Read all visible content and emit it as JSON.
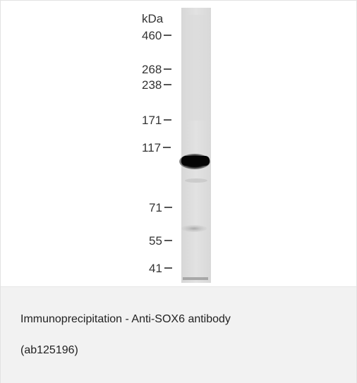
{
  "figure": {
    "unit": "kDa",
    "markers": [
      "460",
      "268",
      "238",
      "171",
      "117",
      "71",
      "55",
      "41"
    ]
  },
  "caption": {
    "line1": "Immunoprecipitation - Anti-SOX6 antibody",
    "line2": "(ab125196)"
  }
}
